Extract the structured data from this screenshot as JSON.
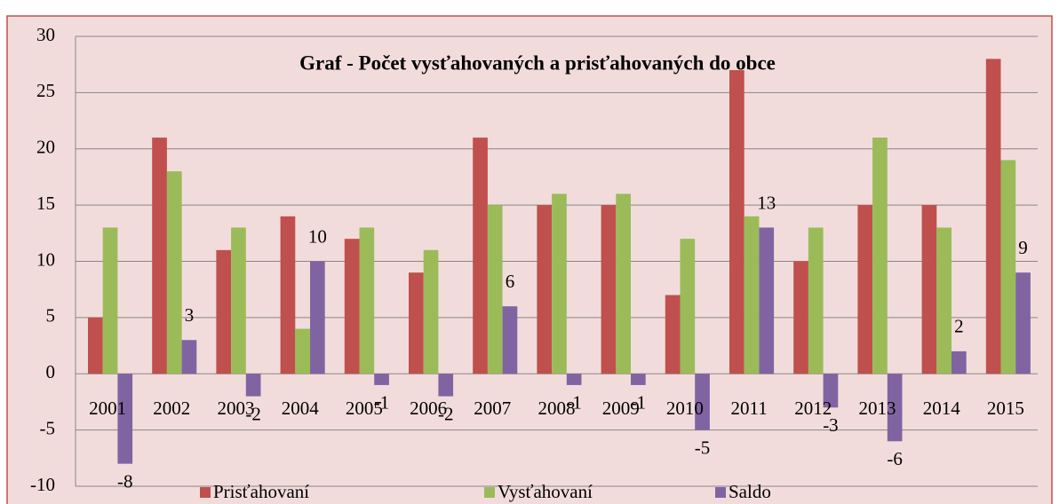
{
  "chart_data": {
    "type": "bar",
    "title": "Graf - Počet vysťahovaných a prisťahovaných do obce",
    "categories": [
      "2001",
      "2002",
      "2003",
      "2004",
      "2005",
      "2006",
      "2007",
      "2008",
      "2009",
      "2010",
      "2011",
      "2012",
      "2013",
      "2014",
      "2015"
    ],
    "series": [
      {
        "name": "Prisťahovaní",
        "color": "#c0504d",
        "values": [
          5,
          21,
          11,
          14,
          12,
          9,
          21,
          15,
          15,
          7,
          27,
          10,
          15,
          15,
          28
        ]
      },
      {
        "name": "Vysťahovaní",
        "color": "#9bbb59",
        "values": [
          13,
          18,
          13,
          4,
          13,
          11,
          15,
          16,
          16,
          12,
          14,
          13,
          21,
          13,
          19
        ]
      },
      {
        "name": "Saldo",
        "color": "#8064a2",
        "values": [
          -8,
          3,
          -2,
          10,
          -1,
          -2,
          6,
          -1,
          -1,
          -5,
          13,
          -3,
          -6,
          2,
          9
        ],
        "data_labels": true
      }
    ],
    "ylim": [
      -10,
      30
    ],
    "yticks": [
      -10,
      -5,
      0,
      5,
      10,
      15,
      20,
      25,
      30
    ],
    "grid": true,
    "legend": "bottom"
  }
}
